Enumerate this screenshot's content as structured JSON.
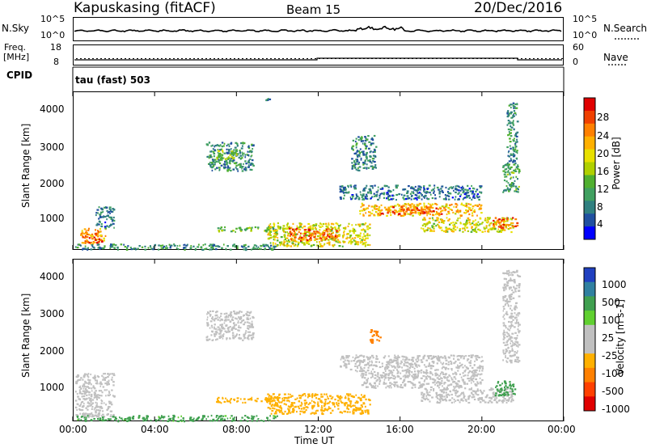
{
  "header": {
    "station": "Kapuskasing (fitACF)",
    "beam": "Beam 15",
    "date": "20/Dec/2016"
  },
  "strips": {
    "nsky_label": "N.Sky",
    "nsky_ticks": [
      "10^5",
      "10^0"
    ],
    "nsearch_label": "N.Search",
    "nsearch_ticks": [
      "10^5",
      "10^0"
    ],
    "freq_label_1": "Freq.",
    "freq_label_2": "[MHz]",
    "freq_ticks": [
      "18",
      "8"
    ],
    "nave_label": "Nave",
    "nave_ticks": [
      "60",
      "0"
    ],
    "cpid_label": "CPID",
    "cpid_text": "tau (fast) 503"
  },
  "chart_data": [
    {
      "type": "heatmap",
      "name": "power",
      "ylabel": "Slant Range [km]",
      "xlabel": "",
      "yticks": [
        "4000",
        "3000",
        "2000",
        "1000"
      ],
      "xlim": [
        0,
        24
      ],
      "ylim": [
        180,
        4600
      ],
      "colorbar_label": "Power [dB]",
      "colorbar_ticks": [
        "28",
        "24",
        "20",
        "16",
        "12",
        "8",
        "4"
      ],
      "colorbar_colors": [
        "#e00000",
        "#f04000",
        "#ff8000",
        "#ffb000",
        "#e8e000",
        "#b0d000",
        "#50b030",
        "#40a060",
        "#308080",
        "#2050a0",
        "#0000ff"
      ],
      "regions": [
        {
          "t0": 0.3,
          "t1": 1.6,
          "r0": 350,
          "r1": 800,
          "level": 24
        },
        {
          "t0": 0.7,
          "t1": 1.4,
          "r0": 400,
          "r1": 560,
          "level": 30
        },
        {
          "t0": 1.1,
          "t1": 2.0,
          "r0": 800,
          "r1": 1400,
          "level": 6
        },
        {
          "t0": 0.1,
          "t1": 10.0,
          "r0": 200,
          "r1": 360,
          "level": 8
        },
        {
          "t0": 6.5,
          "t1": 8.8,
          "r0": 2400,
          "r1": 3200,
          "level": 8
        },
        {
          "t0": 7.0,
          "t1": 8.0,
          "r0": 2700,
          "r1": 3000,
          "level": 13
        },
        {
          "t0": 7.0,
          "t1": 10.0,
          "r0": 700,
          "r1": 850,
          "level": 12
        },
        {
          "t0": 9.5,
          "t1": 14.5,
          "r0": 300,
          "r1": 950,
          "level": 18
        },
        {
          "t0": 10.5,
          "t1": 13.0,
          "r0": 450,
          "r1": 800,
          "level": 27
        },
        {
          "t0": 13.0,
          "t1": 20.0,
          "r0": 1600,
          "r1": 2000,
          "level": 6
        },
        {
          "t0": 14.0,
          "t1": 20.0,
          "r0": 1150,
          "r1": 1500,
          "level": 22
        },
        {
          "t0": 15.0,
          "t1": 18.0,
          "r0": 1200,
          "r1": 1400,
          "level": 27
        },
        {
          "t0": 17.0,
          "t1": 21.5,
          "r0": 700,
          "r1": 1100,
          "level": 18
        },
        {
          "t0": 20.5,
          "t1": 21.7,
          "r0": 800,
          "r1": 1100,
          "level": 28
        },
        {
          "t0": 21.0,
          "t1": 21.8,
          "r0": 1800,
          "r1": 2600,
          "level": 10
        },
        {
          "t0": 21.2,
          "t1": 21.7,
          "r0": 2600,
          "r1": 4300,
          "level": 8
        },
        {
          "t0": 13.6,
          "t1": 14.8,
          "r0": 2400,
          "r1": 3400,
          "level": 7
        },
        {
          "t0": 9.4,
          "t1": 9.6,
          "r0": 4350,
          "r1": 4450,
          "level": 6
        }
      ]
    },
    {
      "type": "heatmap",
      "name": "velocity",
      "ylabel": "Slant Range [km]",
      "xlabel": "Time UT",
      "yticks": [
        "4000",
        "3000",
        "2000",
        "1000"
      ],
      "xticks": [
        "00:00",
        "04:00",
        "08:00",
        "12:00",
        "16:00",
        "20:00",
        "00:00"
      ],
      "xlim": [
        0,
        24
      ],
      "ylim": [
        180,
        4600
      ],
      "colorbar_label": "Velocity [m s-1]",
      "colorbar_ticks": [
        "1000",
        "500",
        "100",
        "25",
        "-25",
        "-100",
        "-500",
        "-1000"
      ],
      "colorbar_colors": [
        "#2040c0",
        "#3080a0",
        "#40a050",
        "#60d030",
        "#c0c0c0",
        "#c0c0c0",
        "#ffb000",
        "#ff8000",
        "#ff4000",
        "#e00000"
      ],
      "regions": [
        {
          "t0": 0.1,
          "t1": 2.0,
          "r0": 300,
          "r1": 1500,
          "level": 0
        },
        {
          "t0": 0.1,
          "t1": 10.0,
          "r0": 200,
          "r1": 360,
          "level": 150
        },
        {
          "t0": 6.5,
          "t1": 8.8,
          "r0": 2400,
          "r1": 3200,
          "level": 0
        },
        {
          "t0": 7.0,
          "t1": 10.0,
          "r0": 700,
          "r1": 850,
          "level": -200
        },
        {
          "t0": 9.5,
          "t1": 14.5,
          "r0": 400,
          "r1": 950,
          "level": -200
        },
        {
          "t0": 13.0,
          "t1": 20.0,
          "r0": 1550,
          "r1": 2000,
          "level": 0
        },
        {
          "t0": 14.0,
          "t1": 20.0,
          "r0": 1100,
          "r1": 1550,
          "level": 0
        },
        {
          "t0": 17.0,
          "t1": 21.5,
          "r0": 700,
          "r1": 1100,
          "level": 0
        },
        {
          "t0": 20.6,
          "t1": 21.6,
          "r0": 900,
          "r1": 1300,
          "level": 200
        },
        {
          "t0": 14.5,
          "t1": 15.0,
          "r0": 2300,
          "r1": 2700,
          "level": -600
        },
        {
          "t0": 21.0,
          "t1": 21.8,
          "r0": 1800,
          "r1": 4300,
          "level": 0
        }
      ]
    }
  ]
}
